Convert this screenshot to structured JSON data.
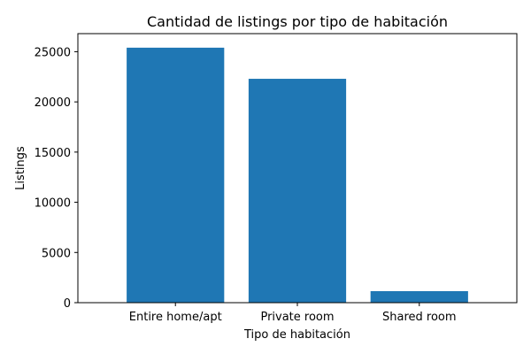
{
  "chart_data": {
    "type": "bar",
    "title": "Cantidad de listings por tipo de habitación",
    "xlabel": "Tipo de habitación",
    "ylabel": "Listings",
    "categories": [
      "Entire home/apt",
      "Private room",
      "Shared room"
    ],
    "values": [
      25400,
      22300,
      1150
    ],
    "ylim": [
      0,
      26800
    ],
    "yticks": [
      0,
      5000,
      10000,
      15000,
      20000,
      25000
    ],
    "bar_color": "#1f77b4",
    "grid": false
  }
}
